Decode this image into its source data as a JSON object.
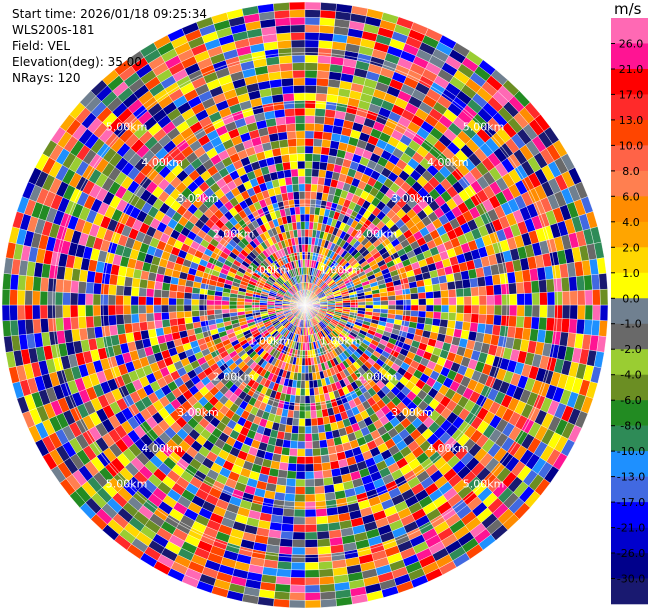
{
  "header": {
    "start_time": "Start time: 2026/01/18 09:25:34",
    "site": "WLS200s-181",
    "field": "Field: VEL",
    "elevation": "Elevation(deg): 35.00",
    "nrays": "NRays: 120"
  },
  "ppi": {
    "n_rays": 120,
    "n_range_gates": 40,
    "max_range_km": 6.0,
    "range_ring_labels": [
      "1.00km",
      "2.00km",
      "3.00km",
      "4.00km",
      "5.00km"
    ],
    "range_ring_km": [
      1,
      2,
      3,
      4,
      5
    ]
  },
  "colorbar": {
    "unit": "m/s",
    "ticks": [
      "26.0",
      "21.0",
      "17.0",
      "13.0",
      "10.0",
      "8.0",
      "6.0",
      "4.0",
      "2.0",
      "1.0",
      "0.0",
      "-1.0",
      "-2.0",
      "-4.0",
      "-6.0",
      "-8.0",
      "-10.0",
      "-13.0",
      "-17.0",
      "-21.0",
      "-26.0",
      "-30.0"
    ],
    "colors": [
      "#ff69b4",
      "#ff1493",
      "#ff0000",
      "#ff2a2a",
      "#ff4500",
      "#ff6347",
      "#ff7f50",
      "#ff8c00",
      "#ffa500",
      "#ffd700",
      "#ffff00",
      "#708090",
      "#696969",
      "#9acd32",
      "#6b8e23",
      "#228b22",
      "#2e8b57",
      "#1e90ff",
      "#4169e1",
      "#0000ff",
      "#0000cd",
      "#00008b",
      "#191970"
    ]
  }
}
